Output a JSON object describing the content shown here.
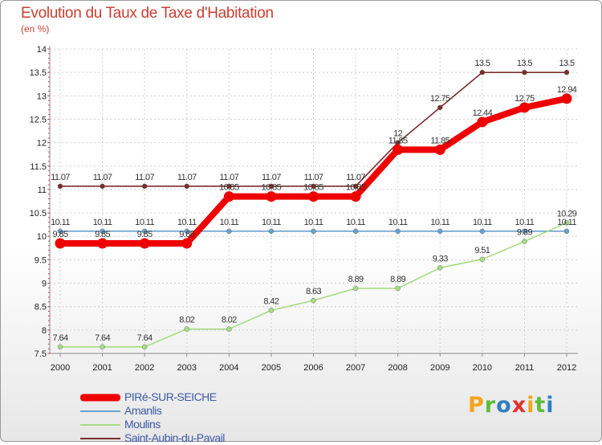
{
  "title": "Evolution du Taux de Taxe d'Habitation",
  "unit": "(en %)",
  "logo": {
    "text": "Proxiti",
    "letters": [
      "P",
      "r",
      "o",
      "x",
      "i",
      "t",
      "i"
    ],
    "colors": [
      "#f6a31b",
      "#5dbb3c",
      "#2f7fc1",
      "#e4302a",
      "#f6a31b",
      "#5dbb3c",
      "#2f7fc1"
    ]
  },
  "chart_data": {
    "type": "line",
    "x": [
      "2000",
      "2001",
      "2002",
      "2003",
      "2004",
      "2005",
      "2006",
      "2007",
      "2008",
      "2009",
      "2010",
      "2011",
      "2012"
    ],
    "ylim": [
      7.5,
      14
    ],
    "yticks": [
      "7.5",
      "8",
      "8.5",
      "9",
      "9.5",
      "10",
      "10.5",
      "11",
      "11.5",
      "12",
      "12.5",
      "13",
      "13.5",
      "14"
    ],
    "grid": true,
    "series": [
      {
        "name": "Saint-Aubin-du-Pavail",
        "color": "#7b2d2d",
        "values": [
          11.07,
          11.07,
          11.07,
          11.07,
          11.07,
          11.07,
          11.07,
          11.07,
          12,
          12.75,
          13.5,
          13.5,
          13.5
        ],
        "labels": [
          "11.07",
          "11.07",
          "11.07",
          "11.07",
          "11.07",
          "11.07",
          "11.07",
          "11.07",
          "12",
          "12.75",
          "13.5",
          "13.5",
          "13.5"
        ]
      },
      {
        "name": "Amanlis",
        "color": "#6aa1cd",
        "values": [
          10.11,
          10.11,
          10.11,
          10.11,
          10.11,
          10.11,
          10.11,
          10.11,
          10.11,
          10.11,
          10.11,
          10.11,
          10.11
        ],
        "labels": [
          "10.11",
          "10.11",
          "10.11",
          "10.11",
          "10.11",
          "10.11",
          "10.11",
          "10.11",
          "10.11",
          "10.11",
          "10.11",
          "10.11",
          "10.11"
        ]
      },
      {
        "name": "Moulins",
        "color": "#a6dc84",
        "values": [
          7.64,
          7.64,
          7.64,
          8.02,
          8.02,
          8.42,
          8.63,
          8.89,
          8.89,
          9.33,
          9.51,
          9.89,
          10.29
        ],
        "labels": [
          "7.64",
          "7.64",
          "7.64",
          "8.02",
          "8.02",
          "8.42",
          "8.63",
          "8.89",
          "8.89",
          "9.33",
          "9.51",
          "9.89",
          "10.29"
        ]
      },
      {
        "name": "PIRé-SUR-SEICHE",
        "color": "#ee0000",
        "values": [
          9.85,
          9.85,
          9.85,
          9.85,
          10.85,
          10.85,
          10.85,
          10.85,
          11.85,
          11.85,
          12.44,
          12.75,
          12.94
        ],
        "labels": [
          "9.85",
          "9.85",
          "9.85",
          "9.85",
          "10.85",
          "10.85",
          "10.85",
          "10.85",
          "11.85",
          "11.85",
          "12.44",
          "12.75",
          "12.94"
        ]
      }
    ],
    "legend": {
      "placement": "bottom-left",
      "entries": [
        "PIRé-SUR-SEICHE",
        "Amanlis",
        "Moulins",
        "Saint-Aubin-du-Pavail"
      ]
    }
  }
}
